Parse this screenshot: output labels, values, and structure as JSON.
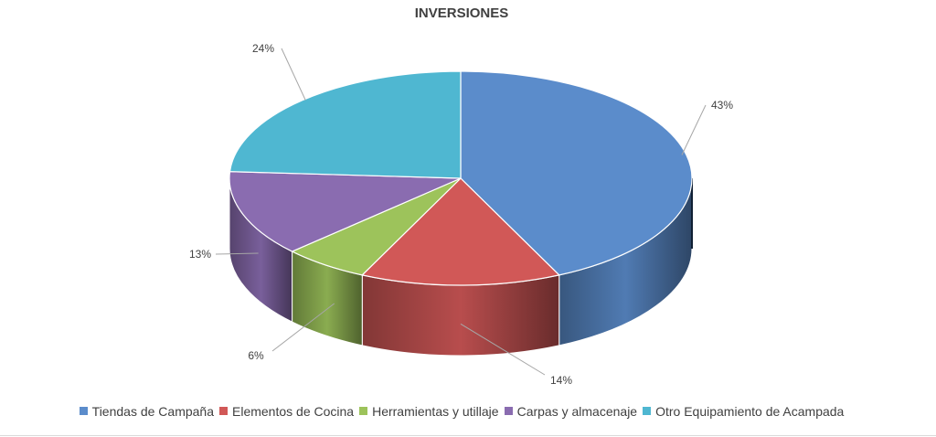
{
  "chart_data": {
    "type": "pie",
    "title": "INVERSIONES",
    "series": [
      {
        "name": "Tiendas de Campaña",
        "value": 43,
        "label": "43%",
        "color": "#5B8CCB"
      },
      {
        "name": "Elementos de Cocina",
        "value": 14,
        "label": "14%",
        "color": "#D15857"
      },
      {
        "name": "Herramientas y utillaje",
        "value": 6,
        "label": "6%",
        "color": "#9DC35B"
      },
      {
        "name": "Carpas y almacenaje",
        "value": 13,
        "label": "13%",
        "color": "#8A6CB0"
      },
      {
        "name": "Otro Equipamiento de Acampada",
        "value": 24,
        "label": "24%",
        "color": "#4FB7D1"
      }
    ],
    "style": "3d",
    "legend_position": "bottom"
  }
}
